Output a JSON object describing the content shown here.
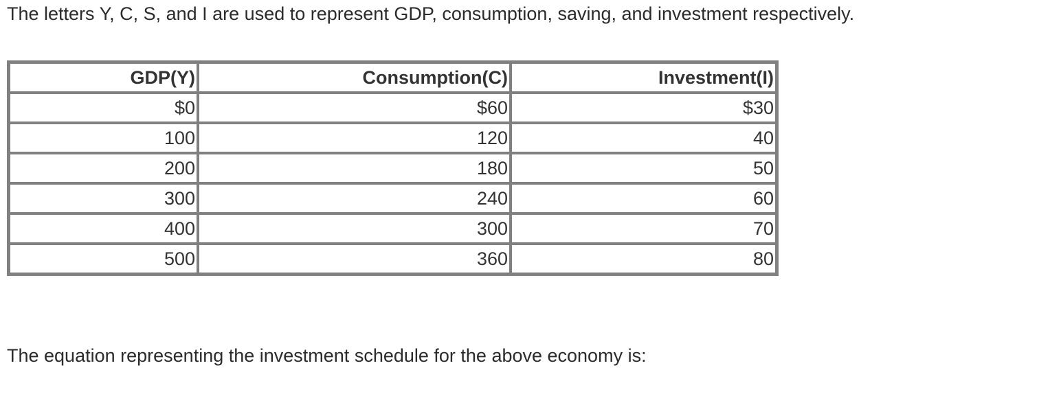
{
  "intro_text": "The letters Y, C, S, and I are used to represent GDP, consumption, saving, and investment respectively.",
  "table": {
    "headers": [
      "GDP(Y)",
      "Consumption(C)",
      "Investment(I)"
    ],
    "rows": [
      [
        "$0",
        "$60",
        "$30"
      ],
      [
        "100",
        "120",
        "40"
      ],
      [
        "200",
        "180",
        "50"
      ],
      [
        "300",
        "240",
        "60"
      ],
      [
        "400",
        "300",
        "70"
      ],
      [
        "500",
        "360",
        "80"
      ]
    ]
  },
  "question_text": "The equation representing the investment schedule for the above economy is:"
}
